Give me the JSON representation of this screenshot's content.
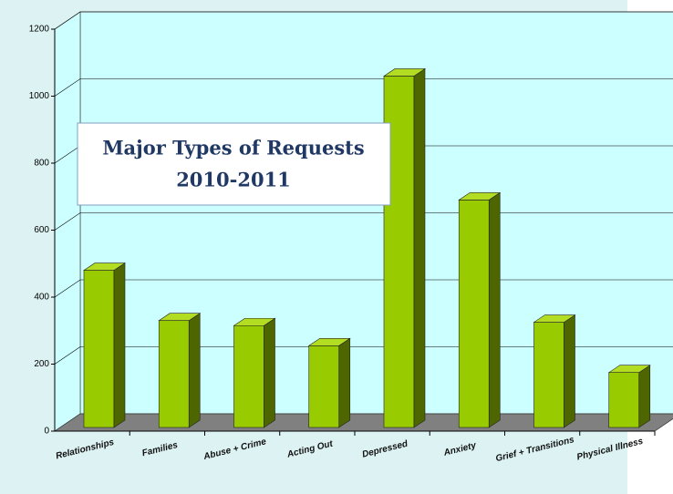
{
  "chart_data": {
    "type": "bar3d",
    "title": "Major Types of Requests",
    "subtitle": "2010-2011",
    "categories": [
      "Relationships",
      "Families",
      "Abuse + Crime",
      "Acting Out",
      "Depressed",
      "Anxiety",
      "Grief + Transitions",
      "Physical Illness"
    ],
    "values": [
      480,
      330,
      315,
      255,
      1060,
      690,
      325,
      175
    ],
    "color": "#99cc00",
    "ylim": [
      0,
      1200
    ],
    "yticks": [
      0,
      200,
      400,
      600,
      800,
      1000,
      1200
    ],
    "grid": true
  }
}
